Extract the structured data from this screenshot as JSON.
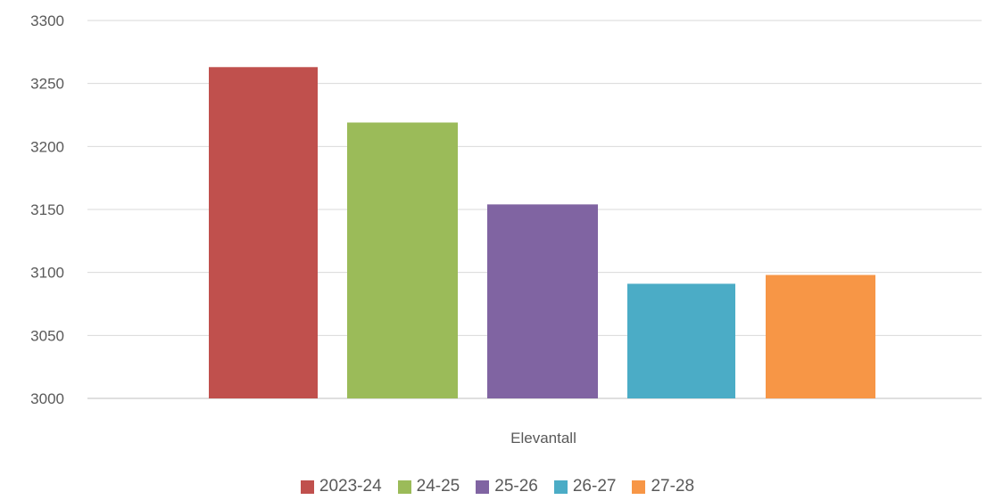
{
  "chart_data": {
    "type": "bar",
    "categories": [
      "Elevantall"
    ],
    "series": [
      {
        "name": "2023-24",
        "values": [
          3263
        ],
        "color": "#c0504d"
      },
      {
        "name": "24-25",
        "values": [
          3219
        ],
        "color": "#9bbb59"
      },
      {
        "name": "25-26",
        "values": [
          3154
        ],
        "color": "#8064a2"
      },
      {
        "name": "26-27",
        "values": [
          3091
        ],
        "color": "#4bacc6"
      },
      {
        "name": "27-28",
        "values": [
          3098
        ],
        "color": "#f79646"
      }
    ],
    "yticks": [
      "3000",
      "3050",
      "3100",
      "3150",
      "3200",
      "3250",
      "3300"
    ],
    "ylim": [
      3000,
      3300
    ],
    "title": "",
    "xlabel": "",
    "ylabel": "",
    "grid": true,
    "legend_position": "bottom"
  }
}
